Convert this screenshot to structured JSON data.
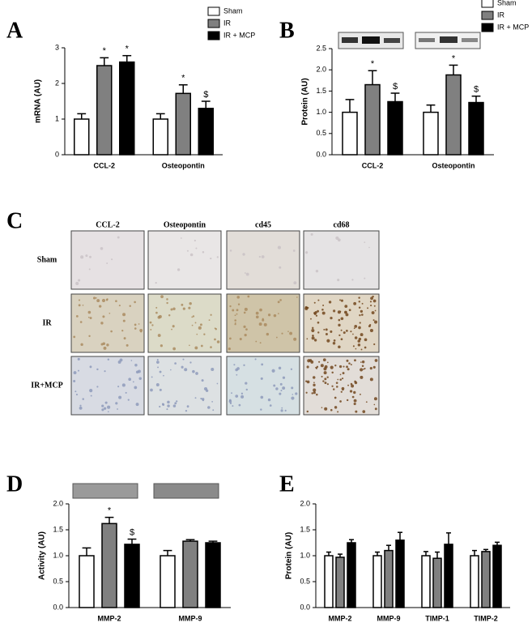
{
  "chart_data": [
    {
      "type": "bar",
      "panel": "A",
      "y_label": "mRNA (AU)",
      "categories": [
        "CCL-2",
        "Osteopontin"
      ],
      "series": [
        {
          "name": "Sham",
          "color": "#ffffff",
          "values": [
            1.0,
            1.0
          ],
          "errors": [
            0.15,
            0.15
          ]
        },
        {
          "name": "IR",
          "color": "#808080",
          "values": [
            2.5,
            1.72
          ],
          "errors": [
            0.22,
            0.24
          ]
        },
        {
          "name": "IR + MCP",
          "color": "#000000",
          "values": [
            2.6,
            1.3
          ],
          "errors": [
            0.18,
            0.2
          ]
        }
      ],
      "annotations": [
        {
          "text": "*",
          "series": 1,
          "category": 0
        },
        {
          "text": "*",
          "series": 2,
          "category": 0
        },
        {
          "text": "*",
          "series": 1,
          "category": 1
        },
        {
          "text": "$",
          "series": 2,
          "category": 1
        }
      ],
      "ylim": [
        0,
        3
      ],
      "yticks": [
        0,
        1,
        2,
        3
      ]
    },
    {
      "type": "bar",
      "panel": "B",
      "y_label": "Protein (AU)",
      "categories": [
        "CCL-2",
        "Osteopontin"
      ],
      "series": [
        {
          "name": "Sham",
          "color": "#ffffff",
          "values": [
            1.0,
            1.0
          ],
          "errors": [
            0.3,
            0.17
          ]
        },
        {
          "name": "IR",
          "color": "#808080",
          "values": [
            1.65,
            1.88
          ],
          "errors": [
            0.33,
            0.23
          ]
        },
        {
          "name": "IR + MCP",
          "color": "#000000",
          "values": [
            1.25,
            1.23
          ],
          "errors": [
            0.2,
            0.15
          ]
        }
      ],
      "annotations": [
        {
          "text": "*",
          "series": 1,
          "category": 0
        },
        {
          "text": "$",
          "series": 2,
          "category": 0
        },
        {
          "text": "*",
          "series": 1,
          "category": 1
        },
        {
          "text": "$",
          "series": 2,
          "category": 1
        }
      ],
      "ylim": [
        0,
        2.5
      ],
      "yticks": [
        {
          "value": 0,
          "label": "0.0"
        },
        0.5,
        {
          "value": 1,
          "label": "1.0"
        },
        1.5,
        {
          "value": 2,
          "label": "2.0"
        },
        2.5
      ]
    },
    {
      "type": "bar",
      "panel": "D",
      "y_label": "Activity (AU)",
      "categories": [
        "MMP-2",
        "MMP-9"
      ],
      "series": [
        {
          "color": "#ffffff",
          "values": [
            1.0,
            1.0
          ],
          "errors": [
            0.15,
            0.1
          ]
        },
        {
          "color": "#808080",
          "values": [
            1.62,
            1.28
          ],
          "errors": [
            0.12,
            0.03
          ]
        },
        {
          "color": "#000000",
          "values": [
            1.22,
            1.25
          ],
          "errors": [
            0.1,
            0.03
          ]
        }
      ],
      "annotations": [
        {
          "text": "*",
          "series": 1,
          "category": 0
        },
        {
          "text": "$",
          "series": 2,
          "category": 0
        }
      ],
      "ylim": [
        0,
        2
      ],
      "yticks": [
        {
          "value": 0,
          "label": "0.0"
        },
        0.5,
        {
          "value": 1,
          "label": "1.0"
        },
        1.5,
        {
          "value": 2,
          "label": "2.0"
        }
      ]
    },
    {
      "type": "bar",
      "panel": "E",
      "y_label": "Protein (AU)",
      "categories": [
        "MMP-2",
        "MMP-9",
        "TIMP-1",
        "TIMP-2"
      ],
      "series": [
        {
          "color": "#ffffff",
          "values": [
            1.0,
            1.0,
            1.0,
            1.0
          ],
          "errors": [
            0.07,
            0.07,
            0.08,
            0.1
          ]
        },
        {
          "color": "#808080",
          "values": [
            0.97,
            1.1,
            0.95,
            1.08
          ],
          "errors": [
            0.06,
            0.1,
            0.12,
            0.04
          ]
        },
        {
          "color": "#000000",
          "values": [
            1.25,
            1.3,
            1.22,
            1.2
          ],
          "errors": [
            0.06,
            0.15,
            0.22,
            0.06
          ]
        }
      ],
      "annotations": [],
      "ylim": [
        0,
        2
      ],
      "yticks": [
        {
          "value": 0,
          "label": "0.0"
        },
        0.5,
        {
          "value": 1,
          "label": "1.0"
        },
        1.5,
        {
          "value": 2,
          "label": "2.0"
        }
      ]
    }
  ],
  "micrograph_grid": {
    "panel": "C",
    "columns": [
      "CCL-2",
      "Osteopontin",
      "cd45",
      "cd68"
    ],
    "rows": [
      "Sham",
      "IR",
      "IR+MCP"
    ]
  }
}
